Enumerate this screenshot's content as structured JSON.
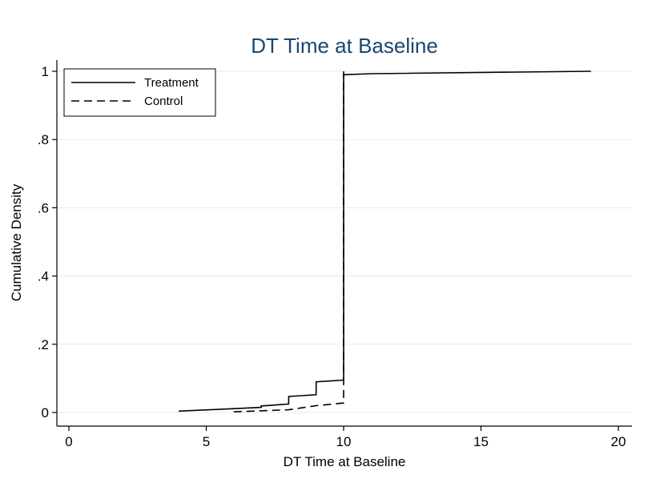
{
  "chart_data": {
    "type": "line",
    "title": "DT Time at Baseline",
    "xlabel": "DT Time at Baseline",
    "ylabel": "Cumulative Density",
    "xlim": [
      0,
      20
    ],
    "ylim": [
      0,
      1
    ],
    "x_ticks": [
      {
        "value": 0,
        "label": "0"
      },
      {
        "value": 5,
        "label": "5"
      },
      {
        "value": 10,
        "label": "10"
      },
      {
        "value": 15,
        "label": "15"
      },
      {
        "value": 20,
        "label": "20"
      }
    ],
    "y_ticks": [
      {
        "value": 0,
        "label": "0"
      },
      {
        "value": 0.2,
        "label": ".2"
      },
      {
        "value": 0.4,
        "label": ".4"
      },
      {
        "value": 0.6,
        "label": ".6"
      },
      {
        "value": 0.8,
        "label": ".8"
      },
      {
        "value": 1,
        "label": "1"
      }
    ],
    "grid": true,
    "legend_position": "top-left",
    "series": [
      {
        "name": "Treatment",
        "style": "solid",
        "color": "#000000",
        "points": [
          [
            4,
            0.004
          ],
          [
            7,
            0.015
          ],
          [
            7,
            0.019
          ],
          [
            8,
            0.025
          ],
          [
            8,
            0.047
          ],
          [
            9,
            0.052
          ],
          [
            9,
            0.09
          ],
          [
            10,
            0.095
          ],
          [
            10,
            0.99
          ],
          [
            11,
            0.993
          ],
          [
            19,
            1.0
          ]
        ]
      },
      {
        "name": "Control",
        "style": "dashed",
        "color": "#000000",
        "points": [
          [
            6,
            0.002
          ],
          [
            8,
            0.008
          ],
          [
            9,
            0.02
          ],
          [
            10,
            0.028
          ],
          [
            10,
            0.06
          ],
          [
            10,
            1.0
          ]
        ]
      }
    ]
  }
}
